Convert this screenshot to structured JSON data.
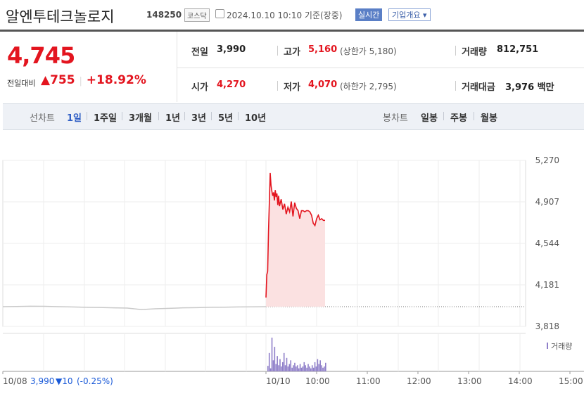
{
  "header": {
    "name": "알엔투테크놀로지",
    "code": "148250",
    "market": "코스닥",
    "timestamp": "2024.10.10 10:10 기준(장중)",
    "realtime_label": "실시간",
    "company_info_label": "기업개요 ▾"
  },
  "quote": {
    "price": "4,745",
    "change_label": "전일대비",
    "change": "▲755",
    "change_pct": "+18.92%",
    "prev_close_label": "전일",
    "prev_close": "3,990",
    "open_label": "시가",
    "open": "4,270",
    "high_label": "고가",
    "high": "5,160",
    "upper_limit_label": "(상한가",
    "upper_limit": "5,180)",
    "low_label": "저가",
    "low": "4,070",
    "lower_limit_label": "(하한가",
    "lower_limit": "2,795)",
    "volume_label": "거래량",
    "volume": "812,751",
    "amount_label": "거래대금",
    "amount": "3,976 백만"
  },
  "tabs": {
    "line_label": "선차트",
    "line_items": [
      "1일",
      "1주일",
      "3개월",
      "1년",
      "3년",
      "5년",
      "10년"
    ],
    "line_selected": 0,
    "candle_label": "봉차트",
    "candle_items": [
      "일봉",
      "주봉",
      "월봉"
    ]
  },
  "colors": {
    "up": "#e3151f",
    "down": "#1a5ad8",
    "volume": "#8f7fc9",
    "fill": "#fbe1e1"
  },
  "chart_data": {
    "type": "line",
    "y_ticks": [
      "5,270",
      "4,907",
      "4,544",
      "4,181",
      "3,818"
    ],
    "ylim": [
      3818,
      5270
    ],
    "x_ticks": [
      "10/10",
      "10:00",
      "11:00",
      "12:00",
      "13:00",
      "14:00",
      "15:00"
    ],
    "reference_price": 3990,
    "prev_day": {
      "label": "10/08",
      "close": "3,990",
      "change": "▼10",
      "change_pct": "(-0.25%)",
      "values": [
        3990,
        3992,
        3994,
        3993,
        3990,
        3988,
        3985,
        3983,
        3980,
        3978,
        3965,
        3972,
        3976,
        3980,
        3982,
        3985,
        3986,
        3988,
        3989,
        3990
      ]
    },
    "today": {
      "label": "10/10",
      "times": [
        "09:00",
        "09:01",
        "09:02",
        "09:03",
        "09:04",
        "09:05",
        "09:06",
        "09:07",
        "09:08",
        "09:09",
        "09:10",
        "09:11",
        "09:12",
        "09:13",
        "09:14",
        "09:15",
        "09:16",
        "09:18",
        "09:20",
        "09:22",
        "09:24",
        "09:26",
        "09:28",
        "09:30",
        "09:32",
        "09:34",
        "09:36",
        "09:38",
        "09:40",
        "09:42",
        "09:44",
        "09:46",
        "09:48",
        "09:50",
        "09:52",
        "09:54",
        "09:56",
        "09:58",
        "10:00",
        "10:02",
        "10:04",
        "10:06",
        "10:08",
        "10:10"
      ],
      "values": [
        4070,
        4270,
        4300,
        4650,
        4900,
        5160,
        5050,
        5000,
        4960,
        4990,
        4920,
        5010,
        4950,
        4980,
        4880,
        4960,
        4870,
        4930,
        4840,
        4890,
        4800,
        4860,
        4820,
        4910,
        4780,
        4900,
        4850,
        4830,
        4760,
        4830,
        4830,
        4820,
        4830,
        4830,
        4820,
        4790,
        4720,
        4700,
        4760,
        4790,
        4750,
        4760,
        4745,
        4745
      ]
    },
    "volume_label": "거래량",
    "volume": [
      9,
      30,
      5,
      55,
      18,
      40,
      12,
      25,
      10,
      20,
      8,
      15,
      30,
      10,
      22,
      8,
      12,
      18,
      6,
      10,
      14,
      8,
      10,
      5,
      12,
      6,
      8,
      15,
      10,
      6,
      12,
      8,
      5,
      10,
      6,
      15,
      8,
      20,
      12,
      18,
      10,
      6,
      8,
      14
    ]
  }
}
